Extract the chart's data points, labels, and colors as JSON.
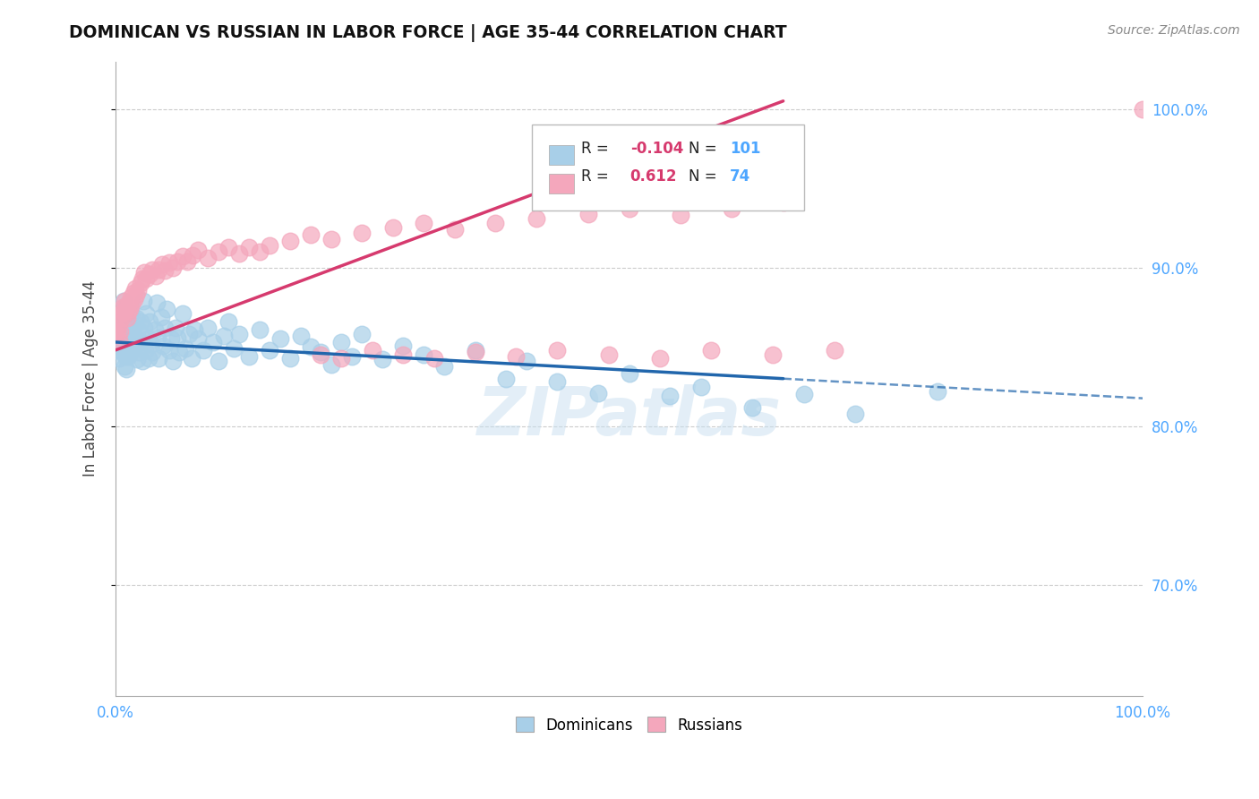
{
  "title": "DOMINICAN VS RUSSIAN IN LABOR FORCE | AGE 35-44 CORRELATION CHART",
  "source": "Source: ZipAtlas.com",
  "ylabel": "In Labor Force | Age 35-44",
  "xlim": [
    0.0,
    1.0
  ],
  "ylim": [
    0.63,
    1.03
  ],
  "ytick_labels": [
    "70.0%",
    "80.0%",
    "90.0%",
    "100.0%"
  ],
  "ytick_values": [
    0.7,
    0.8,
    0.9,
    1.0
  ],
  "xtick_labels": [
    "0.0%",
    "100.0%"
  ],
  "xtick_values": [
    0.0,
    1.0
  ],
  "legend_dominicans": "Dominicans",
  "legend_russians": "Russians",
  "legend_blue_r": "-0.104",
  "legend_blue_n": "101",
  "legend_pink_r": "0.612",
  "legend_pink_n": "74",
  "blue_color": "#a8cfe8",
  "pink_color": "#f4a7bc",
  "blue_fill_color": "#a8cfe8",
  "pink_fill_color": "#f4a7bc",
  "blue_line_color": "#2166ac",
  "pink_line_color": "#d63a6e",
  "watermark": "ZIPatlas",
  "background_color": "#ffffff",
  "grid_color": "#cccccc",
  "dom_x": [
    0.001,
    0.002,
    0.003,
    0.003,
    0.004,
    0.005,
    0.006,
    0.006,
    0.007,
    0.007,
    0.008,
    0.008,
    0.009,
    0.009,
    0.01,
    0.01,
    0.01,
    0.01,
    0.012,
    0.012,
    0.013,
    0.013,
    0.014,
    0.015,
    0.015,
    0.016,
    0.017,
    0.018,
    0.019,
    0.02,
    0.021,
    0.022,
    0.023,
    0.024,
    0.025,
    0.026,
    0.027,
    0.028,
    0.029,
    0.03,
    0.031,
    0.032,
    0.033,
    0.035,
    0.036,
    0.038,
    0.04,
    0.041,
    0.042,
    0.044,
    0.046,
    0.048,
    0.05,
    0.052,
    0.054,
    0.056,
    0.058,
    0.06,
    0.062,
    0.065,
    0.068,
    0.071,
    0.074,
    0.077,
    0.08,
    0.085,
    0.09,
    0.095,
    0.1,
    0.105,
    0.11,
    0.115,
    0.12,
    0.13,
    0.14,
    0.15,
    0.16,
    0.17,
    0.18,
    0.19,
    0.2,
    0.21,
    0.22,
    0.23,
    0.24,
    0.26,
    0.28,
    0.3,
    0.32,
    0.35,
    0.38,
    0.4,
    0.43,
    0.47,
    0.5,
    0.54,
    0.57,
    0.62,
    0.67,
    0.72,
    0.8
  ],
  "dom_y": [
    0.855,
    0.848,
    0.852,
    0.843,
    0.861,
    0.858,
    0.866,
    0.854,
    0.871,
    0.862,
    0.879,
    0.863,
    0.845,
    0.838,
    0.868,
    0.851,
    0.844,
    0.836,
    0.853,
    0.844,
    0.859,
    0.847,
    0.856,
    0.871,
    0.862,
    0.848,
    0.863,
    0.857,
    0.851,
    0.868,
    0.842,
    0.861,
    0.847,
    0.866,
    0.853,
    0.841,
    0.879,
    0.862,
    0.848,
    0.871,
    0.855,
    0.843,
    0.866,
    0.852,
    0.847,
    0.861,
    0.878,
    0.856,
    0.843,
    0.869,
    0.851,
    0.862,
    0.874,
    0.848,
    0.855,
    0.841,
    0.862,
    0.856,
    0.847,
    0.871,
    0.849,
    0.858,
    0.843,
    0.861,
    0.855,
    0.848,
    0.862,
    0.853,
    0.841,
    0.857,
    0.866,
    0.849,
    0.858,
    0.844,
    0.861,
    0.848,
    0.855,
    0.843,
    0.857,
    0.85,
    0.847,
    0.839,
    0.853,
    0.844,
    0.858,
    0.842,
    0.851,
    0.845,
    0.838,
    0.848,
    0.83,
    0.841,
    0.828,
    0.821,
    0.833,
    0.819,
    0.825,
    0.812,
    0.82,
    0.808,
    0.822
  ],
  "rus_x": [
    0.001,
    0.002,
    0.003,
    0.003,
    0.004,
    0.005,
    0.006,
    0.007,
    0.008,
    0.009,
    0.01,
    0.011,
    0.012,
    0.013,
    0.014,
    0.015,
    0.016,
    0.017,
    0.018,
    0.019,
    0.02,
    0.022,
    0.024,
    0.026,
    0.028,
    0.03,
    0.033,
    0.036,
    0.039,
    0.042,
    0.045,
    0.048,
    0.052,
    0.056,
    0.06,
    0.065,
    0.07,
    0.075,
    0.08,
    0.09,
    0.1,
    0.11,
    0.12,
    0.13,
    0.14,
    0.15,
    0.17,
    0.19,
    0.21,
    0.24,
    0.27,
    0.3,
    0.33,
    0.37,
    0.41,
    0.46,
    0.5,
    0.55,
    0.6,
    0.65,
    0.2,
    0.22,
    0.25,
    0.28,
    0.31,
    0.35,
    0.39,
    0.43,
    0.48,
    0.53,
    0.58,
    0.64,
    0.7,
    1.0
  ],
  "rus_y": [
    0.858,
    0.861,
    0.865,
    0.854,
    0.86,
    0.871,
    0.868,
    0.875,
    0.872,
    0.879,
    0.876,
    0.868,
    0.872,
    0.878,
    0.874,
    0.881,
    0.877,
    0.884,
    0.88,
    0.887,
    0.883,
    0.886,
    0.89,
    0.893,
    0.897,
    0.893,
    0.896,
    0.899,
    0.895,
    0.899,
    0.902,
    0.898,
    0.903,
    0.9,
    0.904,
    0.907,
    0.904,
    0.908,
    0.911,
    0.906,
    0.91,
    0.913,
    0.909,
    0.913,
    0.91,
    0.914,
    0.917,
    0.921,
    0.918,
    0.922,
    0.925,
    0.928,
    0.924,
    0.928,
    0.931,
    0.934,
    0.937,
    0.933,
    0.937,
    0.941,
    0.845,
    0.843,
    0.848,
    0.845,
    0.843,
    0.847,
    0.844,
    0.848,
    0.845,
    0.843,
    0.848,
    0.845,
    0.848,
    1.0
  ]
}
